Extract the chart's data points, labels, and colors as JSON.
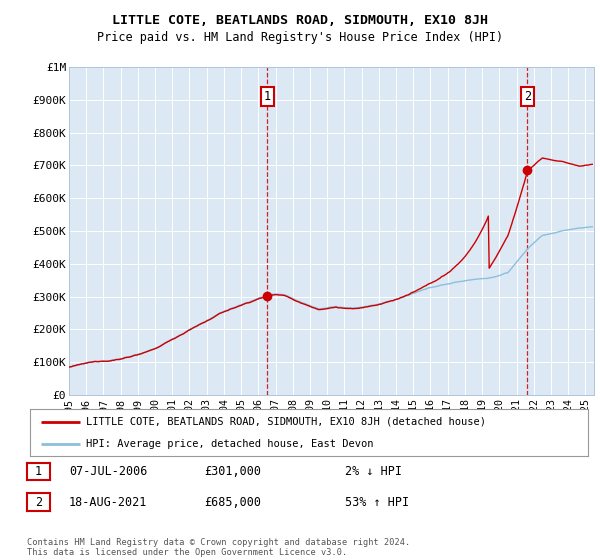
{
  "title": "LITTLE COTE, BEATLANDS ROAD, SIDMOUTH, EX10 8JH",
  "subtitle": "Price paid vs. HM Land Registry's House Price Index (HPI)",
  "ylim": [
    0,
    1000000
  ],
  "xlim_start": 1995.0,
  "xlim_end": 2025.5,
  "background_color": "#dce9f5",
  "hpi_color": "#8bbfdb",
  "price_color": "#cc0000",
  "ann1_x": 2006.52,
  "ann1_y": 301000,
  "ann2_x": 2021.63,
  "ann2_y": 685000,
  "legend_line1": "LITTLE COTE, BEATLANDS ROAD, SIDMOUTH, EX10 8JH (detached house)",
  "legend_line2": "HPI: Average price, detached house, East Devon",
  "footer": "Contains HM Land Registry data © Crown copyright and database right 2024.\nThis data is licensed under the Open Government Licence v3.0.",
  "table_rows": [
    {
      "num": "1",
      "date": "07-JUL-2006",
      "price": "£301,000",
      "hpi": "2% ↓ HPI"
    },
    {
      "num": "2",
      "date": "18-AUG-2021",
      "price": "£685,000",
      "hpi": "53% ↑ HPI"
    }
  ]
}
